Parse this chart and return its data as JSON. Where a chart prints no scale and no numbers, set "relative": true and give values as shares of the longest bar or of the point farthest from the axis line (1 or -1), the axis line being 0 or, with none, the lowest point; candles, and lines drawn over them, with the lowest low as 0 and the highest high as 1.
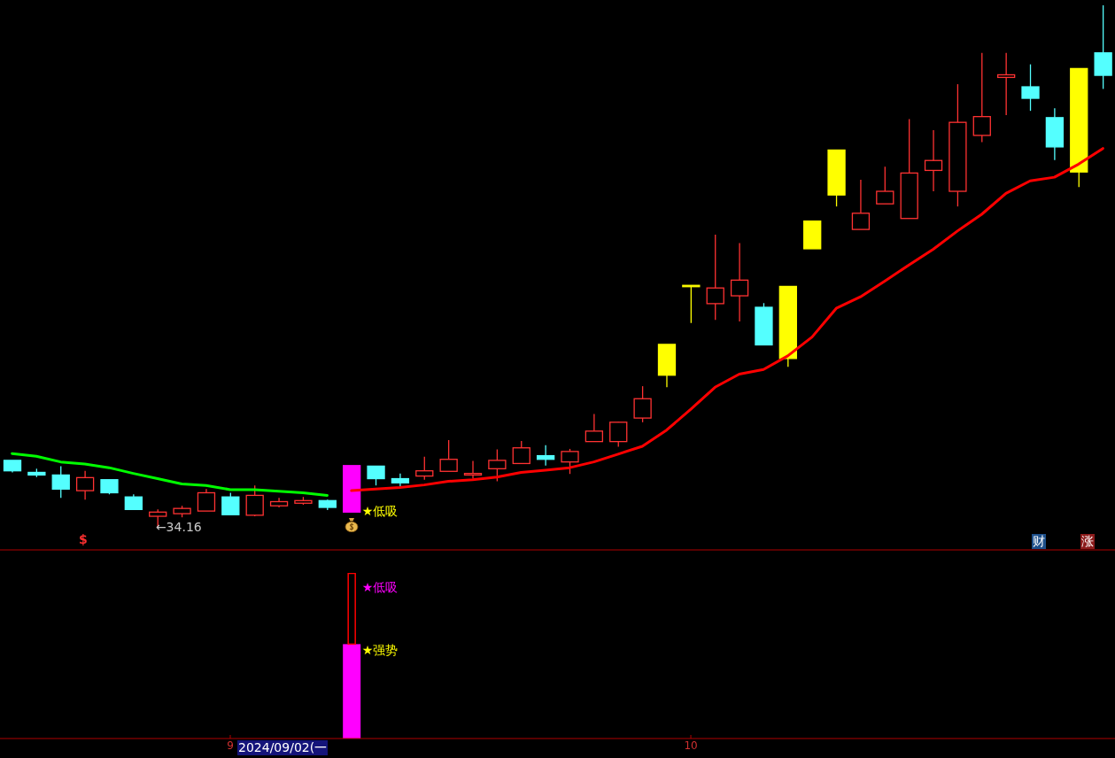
{
  "chart_data": [
    {
      "type": "candlestick",
      "relative": true,
      "tick_labels": false,
      "categories": [
        null,
        null,
        null,
        null,
        null,
        null,
        null,
        null,
        null,
        "9",
        null,
        null,
        null,
        null,
        null,
        null,
        null,
        null,
        null,
        null,
        null,
        null,
        null,
        null,
        null,
        null,
        null,
        null,
        "10",
        null,
        null,
        null,
        null,
        null,
        null,
        null,
        null,
        null,
        null,
        null,
        null,
        null,
        null,
        null,
        null,
        null
      ],
      "ohlc": [
        [
          0.129,
          0.129,
          0.106,
          0.109
        ],
        [
          0.106,
          0.113,
          0.097,
          0.101
        ],
        [
          0.101,
          0.118,
          0.057,
          0.074
        ],
        [
          0.071,
          0.109,
          0.054,
          0.096
        ],
        [
          0.092,
          0.092,
          0.064,
          0.067
        ],
        [
          0.059,
          0.064,
          0.035,
          0.035
        ],
        [
          0.022,
          0.035,
          0,
          0.03
        ],
        [
          0.027,
          0.042,
          0.02,
          0.037
        ],
        [
          0.032,
          0.074,
          0.032,
          0.067
        ],
        [
          0.059,
          0.067,
          0.025,
          0.025
        ],
        [
          0.024,
          0.081,
          0.022,
          0.062
        ],
        [
          0.042,
          0.057,
          0.039,
          0.05
        ],
        [
          0.047,
          0.059,
          0.044,
          0.052
        ],
        [
          0.052,
          0.054,
          0.034,
          0.039
        ],
        null,
        [
          0.118,
          0.118,
          0.081,
          0.094
        ],
        [
          0.094,
          0.104,
          0.079,
          0.086
        ],
        [
          0.099,
          0.136,
          0.092,
          0.109
        ],
        [
          0.108,
          0.168,
          0.108,
          0.131
        ],
        [
          0.101,
          0.128,
          0.094,
          0.104
        ],
        [
          0.113,
          0.15,
          0.089,
          0.129
        ],
        [
          0.123,
          0.166,
          0.123,
          0.153
        ],
        [
          0.138,
          0.158,
          0.119,
          0.131
        ],
        [
          0.126,
          0.151,
          0.103,
          0.146
        ],
        [
          0.165,
          0.218,
          0.165,
          0.185
        ],
        [
          0.165,
          0.203,
          0.155,
          0.202
        ],
        [
          0.21,
          0.271,
          0.202,
          0.247
        ],
        null,
        null,
        [
          0.429,
          0.561,
          0.398,
          0.459
        ],
        [
          0.444,
          0.545,
          0.395,
          0.474
        ],
        [
          0.422,
          0.43,
          0.35,
          0.35
        ],
        null,
        null,
        null,
        [
          0.571,
          0.666,
          0.571,
          0.602
        ],
        [
          0.62,
          0.691,
          0.62,
          0.644
        ],
        [
          0.592,
          0.782,
          0.592,
          0.679
        ],
        [
          0.684,
          0.761,
          0.644,
          0.703
        ],
        [
          0.644,
          0.849,
          0.615,
          0.776
        ],
        [
          0.751,
          0.909,
          0.738,
          0.787
        ],
        [
          0.862,
          0.909,
          0.79,
          0.867
        ],
        [
          0.844,
          0.887,
          0.798,
          0.822
        ],
        [
          0.785,
          0.803,
          0.704,
          0.729
        ],
        null,
        [
          0.909,
          1,
          0.84,
          0.866
        ]
      ],
      "colors": [
        "#54ffff",
        "#54ffff",
        "#54ffff",
        "#ff3232",
        "#54ffff",
        "#54ffff",
        "#ff3232",
        "#ff3232",
        "#ff3232",
        "#54ffff",
        "#ff3232",
        "#ff3232",
        "#ff3232",
        "#54ffff",
        null,
        "#54ffff",
        "#54ffff",
        "#ff3232",
        "#ff3232",
        "#ff3232",
        "#ff3232",
        "#ff3232",
        "#54ffff",
        "#ff3232",
        "#ff3232",
        "#ff3232",
        "#ff3232",
        null,
        null,
        "#ff3232",
        "#ff3232",
        "#54ffff",
        null,
        null,
        null,
        "#ff3232",
        "#ff3232",
        "#ff3232",
        "#ff3232",
        "#ff3232",
        "#ff3232",
        "#ff3232",
        "#54ffff",
        "#54ffff",
        null,
        "#54ffff"
      ],
      "series": [
        {
          "type": "line",
          "color": "#00ff00",
          "values": [
            0.142,
            0.137,
            0.126,
            0.122,
            0.115,
            0.104,
            0.094,
            0.084,
            0.081,
            0.073,
            0.073,
            0.07,
            0.067,
            0.062,
            null,
            null,
            null,
            null,
            null,
            null,
            null,
            null,
            null,
            null,
            null,
            null,
            null,
            null,
            null,
            null,
            null,
            null,
            null,
            null,
            null,
            null,
            null,
            null,
            null,
            null,
            null,
            null,
            null,
            null,
            null,
            null
          ]
        },
        {
          "type": "line",
          "color": "#ff0000",
          "values": [
            null,
            null,
            null,
            null,
            null,
            null,
            null,
            null,
            null,
            null,
            null,
            null,
            null,
            null,
            0.071,
            0.074,
            0.077,
            0.082,
            0.089,
            0.092,
            0.097,
            0.106,
            0.11,
            0.115,
            0.126,
            0.141,
            0.156,
            0.187,
            0.227,
            0.269,
            0.294,
            0.303,
            0.329,
            0.365,
            0.42,
            0.442,
            0.472,
            0.503,
            0.533,
            0.568,
            0.6,
            0.64,
            0.664,
            0.671,
            0.696,
            0.726
          ]
        },
        {
          "type": "candlestick",
          "color": "#ffff00",
          "ohlc": [
            null,
            null,
            null,
            null,
            null,
            null,
            null,
            null,
            null,
            null,
            null,
            null,
            null,
            null,
            null,
            null,
            null,
            null,
            null,
            null,
            null,
            null,
            null,
            null,
            null,
            null,
            null,
            [
              0.292,
              0.351,
              0.269,
              0.351
            ],
            [
              0.464,
              0.464,
              0.392,
              0.464
            ],
            null,
            null,
            null,
            [
              0.324,
              0.462,
              0.308,
              0.462
            ],
            [
              0.534,
              0.587,
              0.534,
              0.587
            ],
            [
              0.637,
              0.723,
              0.615,
              0.723
            ],
            null,
            null,
            null,
            null,
            null,
            null,
            null,
            null,
            null,
            [
              0.681,
              0.879,
              0.652,
              0.879
            ],
            null
          ]
        },
        {
          "type": "candlestick",
          "color": "#ff00ff",
          "ohlc": [
            null,
            null,
            null,
            null,
            null,
            null,
            null,
            null,
            null,
            null,
            null,
            null,
            null,
            null,
            [
              0.03,
              0.119,
              0.03,
              0.119
            ],
            null,
            null,
            null,
            null,
            null,
            null,
            null,
            null,
            null,
            null,
            null,
            null,
            null,
            null,
            null,
            null,
            null,
            null,
            null,
            null,
            null,
            null,
            null,
            null,
            null,
            null,
            null,
            null,
            null,
            null,
            null
          ]
        }
      ],
      "annotations": [
        "←34.16",
        "★低吸",
        "$",
        "财",
        "涨"
      ]
    },
    {
      "type": "bar",
      "relative": true,
      "stacked": true,
      "tick_labels": "x",
      "categories": [
        null,
        null,
        null,
        null,
        null,
        null,
        null,
        null,
        null,
        "9",
        null,
        null,
        null,
        null,
        null,
        null,
        null,
        null,
        null,
        null,
        null,
        null,
        null,
        null,
        null,
        null,
        null,
        null,
        "10",
        null,
        null,
        null,
        null,
        null,
        null,
        null,
        null,
        null,
        null,
        null,
        null,
        null,
        null,
        null,
        null,
        null
      ],
      "series": [
        {
          "color": "#ff00ff",
          "values": [
            null,
            null,
            null,
            null,
            null,
            null,
            null,
            null,
            null,
            null,
            null,
            null,
            null,
            null,
            0.57,
            null,
            null,
            null,
            null,
            null,
            null,
            null,
            null,
            null,
            null,
            null,
            null,
            null,
            null,
            null,
            null,
            null,
            null,
            null,
            null,
            null,
            null,
            null,
            null,
            null,
            null,
            null,
            null,
            null,
            null,
            null
          ]
        },
        {
          "color": "#ff0000",
          "values": [
            null,
            null,
            null,
            null,
            null,
            null,
            null,
            null,
            null,
            null,
            null,
            null,
            null,
            null,
            0.43,
            null,
            null,
            null,
            null,
            null,
            null,
            null,
            null,
            null,
            null,
            null,
            null,
            null,
            null,
            null,
            null,
            null,
            null,
            null,
            null,
            null,
            null,
            null,
            null,
            null,
            null,
            null,
            null,
            null,
            null,
            null
          ]
        }
      ],
      "annotations": [
        "★低吸",
        "★强势",
        "2024/09/02(一"
      ]
    }
  ]
}
